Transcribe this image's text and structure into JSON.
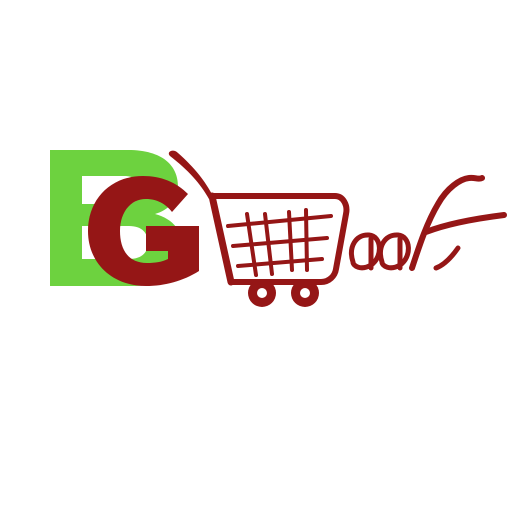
{
  "logo": {
    "text": "BGHaat",
    "colors": {
      "green": "#6dd23f",
      "maroon": "#951616",
      "background": "#ffffff"
    },
    "icon": "shopping-cart-icon"
  }
}
